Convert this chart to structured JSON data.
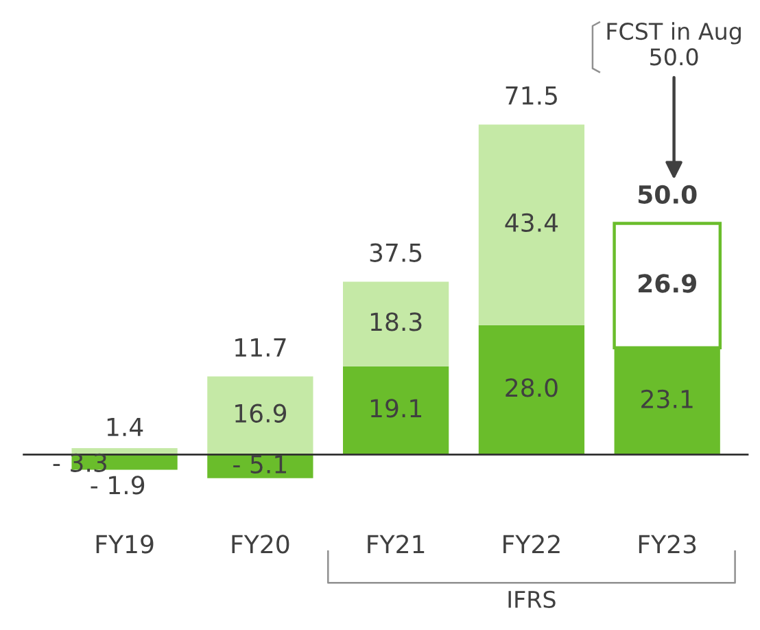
{
  "chart_data": {
    "type": "bar",
    "stacked": true,
    "categories": [
      "FY19",
      "FY20",
      "FY21",
      "FY22",
      "FY23"
    ],
    "series": [
      {
        "color": "#6abd2b",
        "values": [
          -3.3,
          -5.1,
          19.1,
          28.0,
          23.1
        ],
        "value_labels": [
          "- 3.3",
          "- 5.1",
          "19.1",
          "28.0",
          "23.1"
        ]
      },
      {
        "colors": [
          "#c5e9a6",
          "#c5e9a6",
          "#c5e9a6",
          "#c5e9a6",
          "#ffffff"
        ],
        "values": [
          1.4,
          16.9,
          18.3,
          43.4,
          26.9
        ],
        "value_labels": [
          "1.4",
          "16.9",
          "18.3",
          "43.4",
          "26.9"
        ]
      }
    ],
    "totals": [
      "- 1.9",
      "11.7",
      "37.5",
      "71.5",
      "50.0"
    ],
    "annotations": [
      "FCST in Aug\n50.0",
      "IFRS"
    ],
    "grid": false,
    "legend": false
  }
}
